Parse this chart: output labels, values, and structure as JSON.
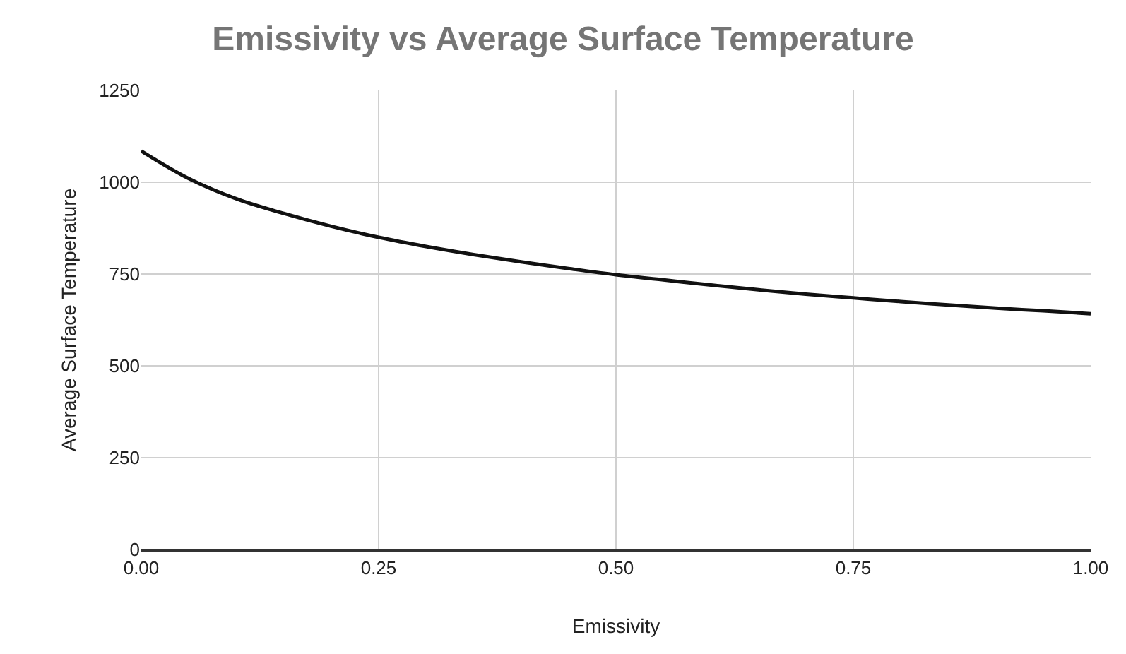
{
  "chart_data": {
    "type": "line",
    "title": "Emissivity vs Average Surface Temperature",
    "xlabel": "Emissivity",
    "ylabel": "Average Surface Temperature",
    "x": [
      0,
      0.05,
      0.1,
      0.15,
      0.2,
      0.25,
      0.3,
      0.35,
      0.4,
      0.45,
      0.5,
      0.55,
      0.6,
      0.65,
      0.7,
      0.75,
      0.8,
      0.85,
      0.9,
      0.95,
      1.0
    ],
    "series": [
      {
        "color": "#111111",
        "values": [
          1085,
          1010,
          955,
          915,
          880,
          850,
          825,
          803,
          783,
          765,
          748,
          734,
          720,
          707,
          695,
          685,
          675,
          666,
          657,
          650,
          642
        ]
      }
    ],
    "xlim": [
      0,
      1
    ],
    "xticks": [
      {
        "value": 0,
        "label": "0.00"
      },
      {
        "value": 0.25,
        "label": "0.25"
      },
      {
        "value": 0.5,
        "label": "0.50"
      },
      {
        "value": 0.75,
        "label": "0.75"
      },
      {
        "value": 1,
        "label": "1.00"
      }
    ],
    "ylim": [
      0,
      1250
    ],
    "yticks": [
      0,
      250,
      500,
      750,
      1000,
      1250
    ],
    "grid": true,
    "marker": "none",
    "line_style": "solid"
  }
}
